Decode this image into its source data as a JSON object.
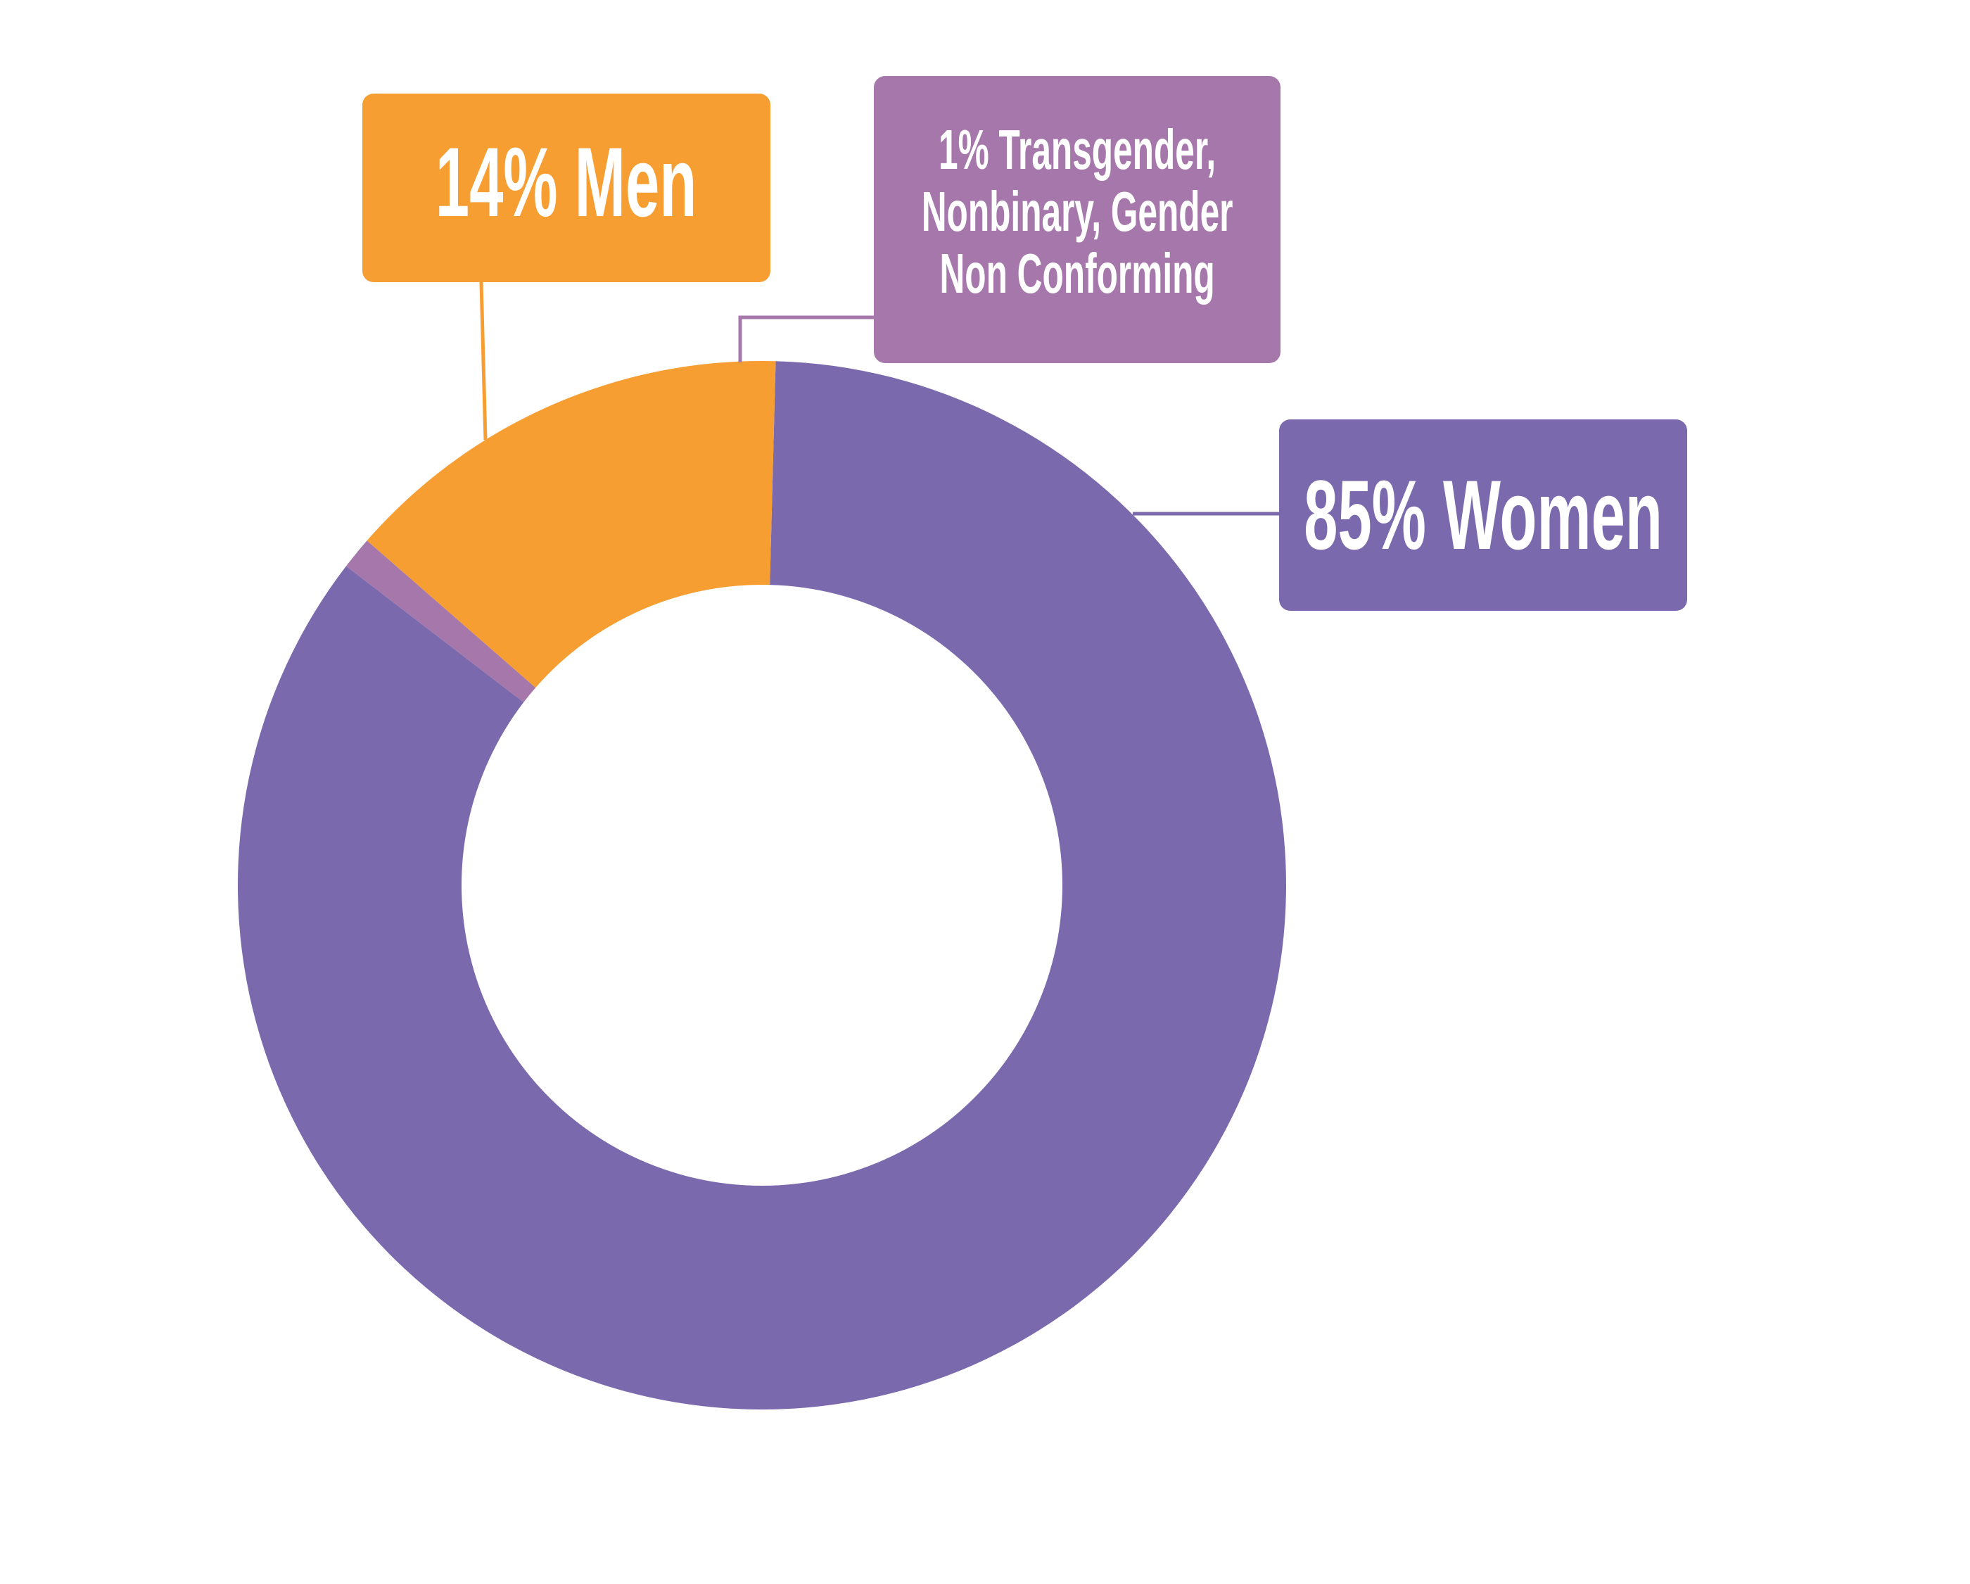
{
  "chart_data": {
    "type": "pie",
    "variant": "donut",
    "slices": [
      {
        "label": "85% Women",
        "value": 85,
        "color": "#7B69AE"
      },
      {
        "label": "1% Transgender, Nonbinary, Gender Non Conforming",
        "value": 1,
        "color": "#A577AB"
      },
      {
        "label": "14% Men",
        "value": 14,
        "color": "#F79E33"
      }
    ],
    "legend": "callouts"
  },
  "callouts": {
    "men": {
      "label": "14% Men",
      "color": "#F79E33"
    },
    "trans": {
      "lines": [
        "1% Transgender,",
        "Nonbinary, Gender",
        "Non Conforming"
      ],
      "color": "#A577AB"
    },
    "women": {
      "label": "85% Women",
      "color": "#7B69AE"
    }
  }
}
